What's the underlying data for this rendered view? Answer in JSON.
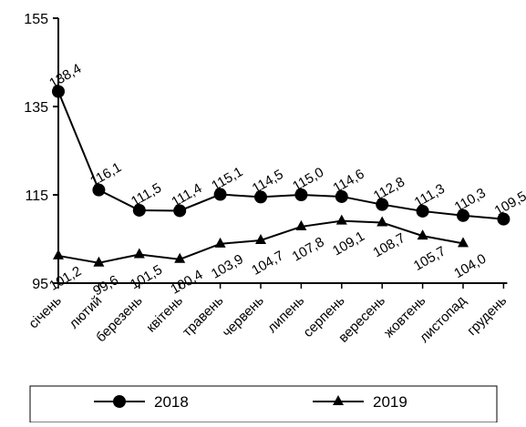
{
  "chart_data": {
    "type": "line",
    "title": "",
    "xlabel": "",
    "ylabel": "",
    "ylim": [
      95,
      155
    ],
    "yticks": [
      95,
      115,
      135,
      155
    ],
    "categories": [
      "січень",
      "лютий",
      "березень",
      "квітень",
      "травень",
      "червень",
      "липень",
      "серпень",
      "вересень",
      "жовтень",
      "листопад",
      "грудень"
    ],
    "series": [
      {
        "name": "2018",
        "marker": "circle",
        "color": "#000000",
        "values": [
          138.4,
          116.1,
          111.5,
          111.4,
          115.1,
          114.5,
          115.0,
          114.6,
          112.8,
          111.3,
          110.3,
          109.5
        ],
        "labels": [
          "138,4",
          "116,1",
          "111,5",
          "111,4",
          "115,1",
          "114,5",
          "115,0",
          "114,6",
          "112,8",
          "111,3",
          "110,3",
          "109,5"
        ]
      },
      {
        "name": "2019",
        "marker": "triangle",
        "color": "#000000",
        "values": [
          101.2,
          99.6,
          101.5,
          100.4,
          103.9,
          104.7,
          107.8,
          109.1,
          108.7,
          105.7,
          104.0,
          null
        ],
        "labels": [
          "101,2",
          "99,6",
          "101,5",
          "100,4",
          "103,9",
          "104,7",
          "107,8",
          "109,1",
          "108,7",
          "105,7",
          "104,0",
          null
        ]
      }
    ],
    "grid": false,
    "legend": "bottom"
  }
}
